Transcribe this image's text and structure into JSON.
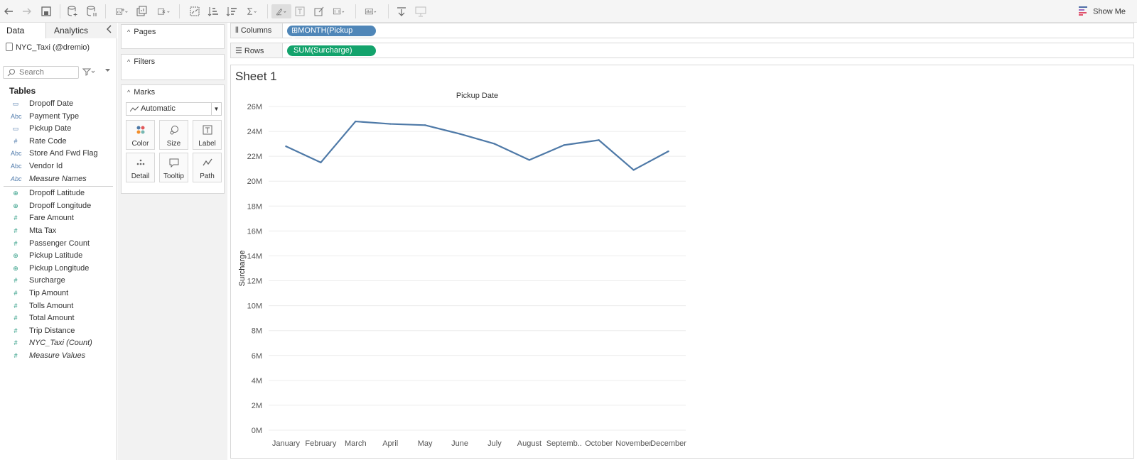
{
  "app": {
    "show_me_label": "Show Me"
  },
  "data_pane": {
    "tabs": [
      {
        "label": "Data"
      },
      {
        "label": "Analytics"
      }
    ],
    "datasource": "NYC_Taxi (@dremio)",
    "search_placeholder": "Search",
    "tables_header": "Tables",
    "dimensions": [
      {
        "label": "Dropoff Date",
        "icon": "calendar-icon"
      },
      {
        "label": "Payment Type",
        "icon": "abc-icon"
      },
      {
        "label": "Pickup Date",
        "icon": "calendar-icon"
      },
      {
        "label": "Rate Code",
        "icon": "number-icon"
      },
      {
        "label": "Store And Fwd Flag",
        "icon": "abc-icon"
      },
      {
        "label": "Vendor Id",
        "icon": "abc-icon"
      },
      {
        "label": "Measure Names",
        "icon": "abc-icon"
      }
    ],
    "measures": [
      {
        "label": "Dropoff Latitude",
        "icon": "globe-icon"
      },
      {
        "label": "Dropoff Longitude",
        "icon": "globe-icon"
      },
      {
        "label": "Fare Amount",
        "icon": "number-icon"
      },
      {
        "label": "Mta Tax",
        "icon": "number-icon"
      },
      {
        "label": "Passenger Count",
        "icon": "number-icon"
      },
      {
        "label": "Pickup Latitude",
        "icon": "globe-icon"
      },
      {
        "label": "Pickup Longitude",
        "icon": "globe-icon"
      },
      {
        "label": "Surcharge",
        "icon": "number-icon"
      },
      {
        "label": "Tip Amount",
        "icon": "number-icon"
      },
      {
        "label": "Tolls Amount",
        "icon": "number-icon"
      },
      {
        "label": "Total Amount",
        "icon": "number-icon"
      },
      {
        "label": "Trip Distance",
        "icon": "number-icon"
      },
      {
        "label": "NYC_Taxi (Count)",
        "icon": "number-icon"
      },
      {
        "label": "Measure Values",
        "icon": "number-icon"
      }
    ]
  },
  "cards": {
    "pages": "Pages",
    "filters": "Filters",
    "marks": "Marks",
    "mark_type": "Automatic",
    "mark_buttons": [
      {
        "label": "Color"
      },
      {
        "label": "Size"
      },
      {
        "label": "Label"
      },
      {
        "label": "Detail"
      },
      {
        "label": "Tooltip"
      },
      {
        "label": "Path"
      }
    ]
  },
  "shelves": {
    "columns_label": "Columns",
    "columns_pill": "MONTH(Pickup Date)",
    "rows_label": "Rows",
    "rows_pill": "SUM(Surcharge)"
  },
  "sheet": {
    "title": "Sheet 1"
  },
  "colors": {
    "line": "#4e79a7",
    "dimension_pill": "#4f86b8",
    "measure_pill": "#13a36c"
  },
  "chart_data": {
    "type": "line",
    "title": "Pickup Date",
    "xlabel": "",
    "ylabel": "Surcharge",
    "categories": [
      "January",
      "February",
      "March",
      "April",
      "May",
      "June",
      "July",
      "August",
      "Septemb..",
      "October",
      "November",
      "December"
    ],
    "series": [
      {
        "values": [
          22.8,
          21.5,
          24.8,
          24.6,
          24.5,
          23.8,
          23.0,
          21.7,
          22.9,
          23.3,
          20.9,
          22.4
        ]
      }
    ],
    "ylim": [
      0,
      26
    ],
    "yticks": [
      0,
      2,
      4,
      6,
      8,
      10,
      12,
      14,
      16,
      18,
      20,
      22,
      24,
      26
    ],
    "ytick_labels": [
      "0M",
      "2M",
      "4M",
      "6M",
      "8M",
      "10M",
      "12M",
      "14M",
      "16M",
      "18M",
      "20M",
      "22M",
      "24M",
      "26M"
    ],
    "grid": true
  }
}
